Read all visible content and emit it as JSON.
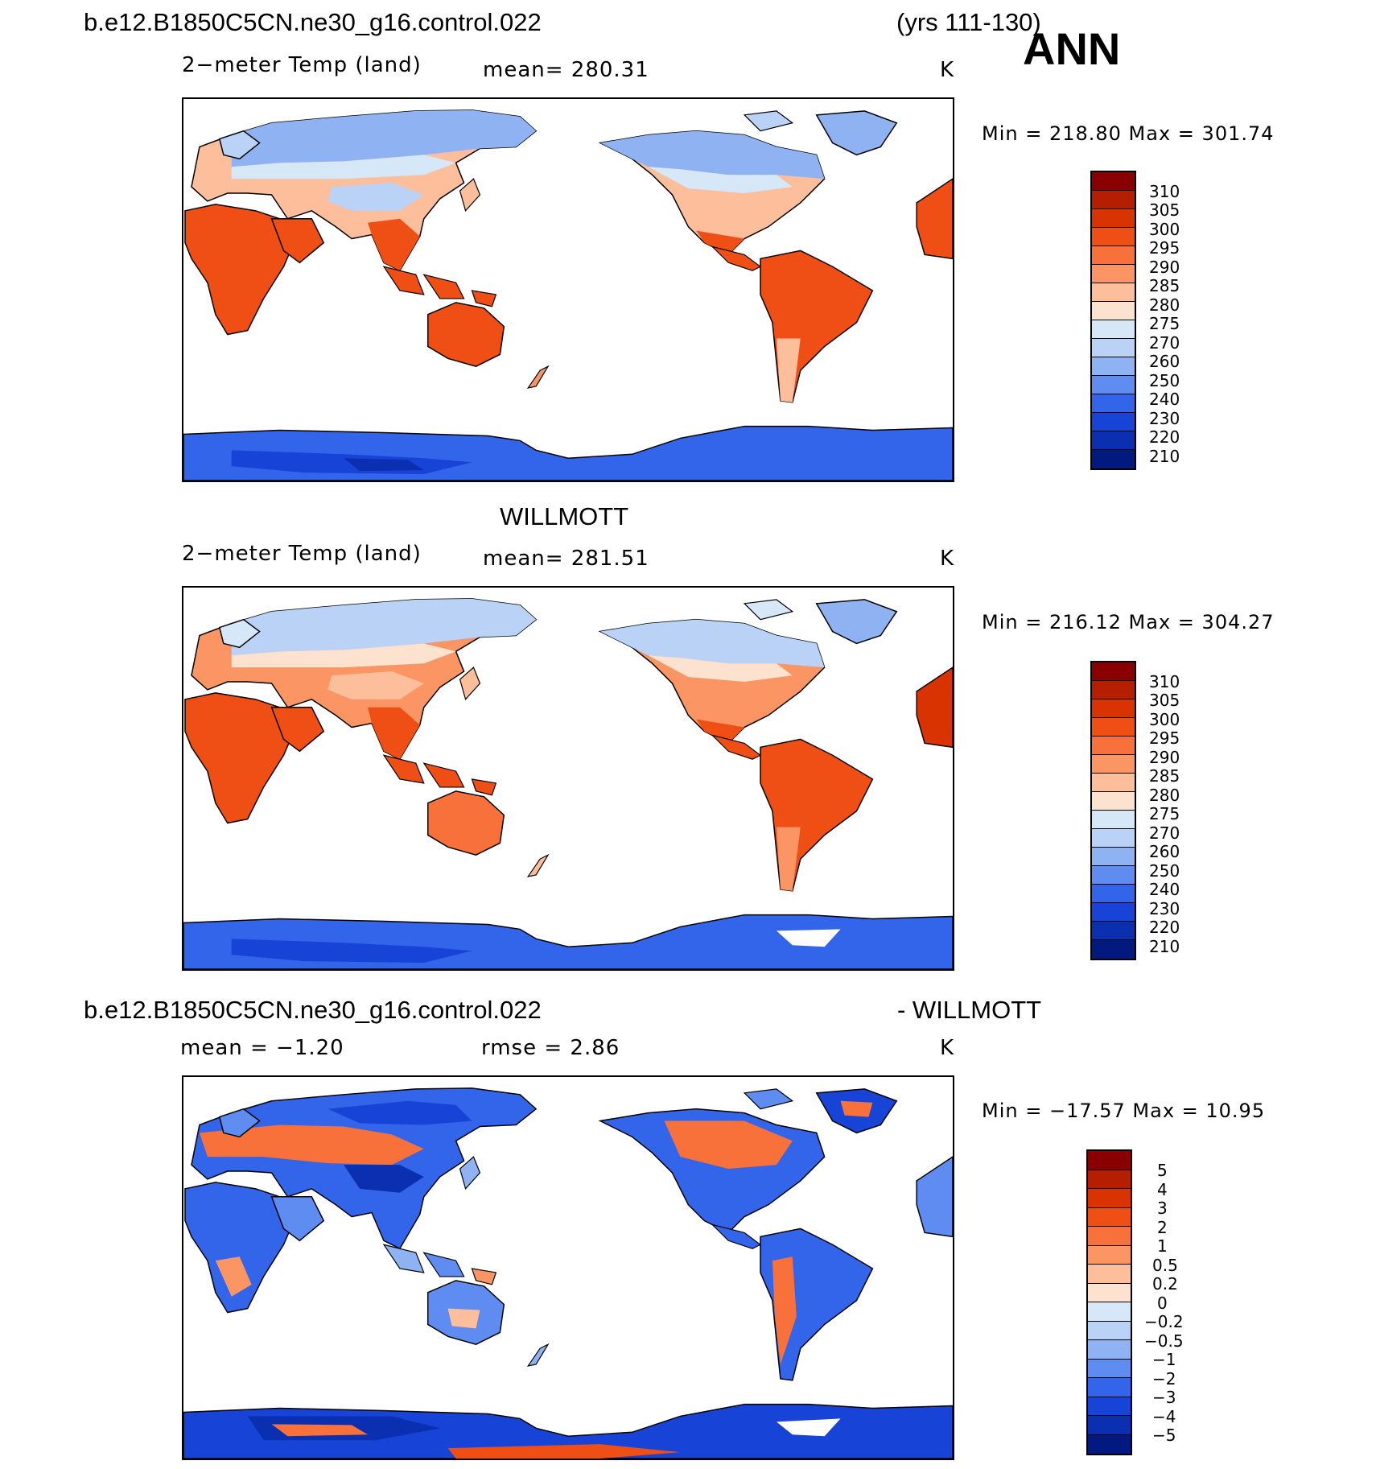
{
  "header": {
    "case_name": "b.e12.B1850C5CN.ne30_g16.control.022",
    "years": "(yrs 111-130)",
    "season": "ANN"
  },
  "panels": [
    {
      "variable": "2−meter Temp (land)",
      "stat": "mean=  280.31",
      "units": "K",
      "minmax": "Min  =  218.80  Max  =  301.74"
    },
    {
      "title": "WILLMOTT",
      "variable": "2−meter Temp (land)",
      "stat": "mean=  281.51",
      "units": "K",
      "minmax": "Min  =  216.12  Max  =  304.27"
    },
    {
      "title_left": "b.e12.B1850C5CN.ne30_g16.control.022",
      "title_right": "- WILLMOTT",
      "stat_mean": "mean =    −1.20",
      "stat_rmse": "rmse =      2.86",
      "units": "K",
      "minmax": "Min  =  −17.57  Max  =     10.95"
    }
  ],
  "colorbars": {
    "absolute": {
      "labels": [
        "310",
        "305",
        "300",
        "295",
        "290",
        "285",
        "280",
        "275",
        "270",
        "260",
        "250",
        "240",
        "230",
        "220",
        "210"
      ],
      "colors": [
        "#8a0000",
        "#b51e00",
        "#d83300",
        "#ef4e14",
        "#f9713a",
        "#fb9564",
        "#fdbf9b",
        "#fde3cf",
        "#d6e7f8",
        "#b9d2f6",
        "#8fb2f3",
        "#5f8cf0",
        "#3265ea",
        "#1744d6",
        "#0a2fb0",
        "#021a80"
      ]
    },
    "difference": {
      "labels": [
        "5",
        "4",
        "3",
        "2",
        "1",
        "0.5",
        "0.2",
        "0",
        "−0.2",
        "−0.5",
        "−1",
        "−2",
        "−3",
        "−4",
        "−5"
      ],
      "colors": [
        "#8a0000",
        "#b51e00",
        "#d83300",
        "#ef4e14",
        "#f9713a",
        "#fb9564",
        "#fdbf9b",
        "#fde3cf",
        "#d6e7f8",
        "#b9d2f6",
        "#8fb2f3",
        "#5f8cf0",
        "#3265ea",
        "#1744d6",
        "#0a2fb0",
        "#021a80"
      ]
    }
  }
}
